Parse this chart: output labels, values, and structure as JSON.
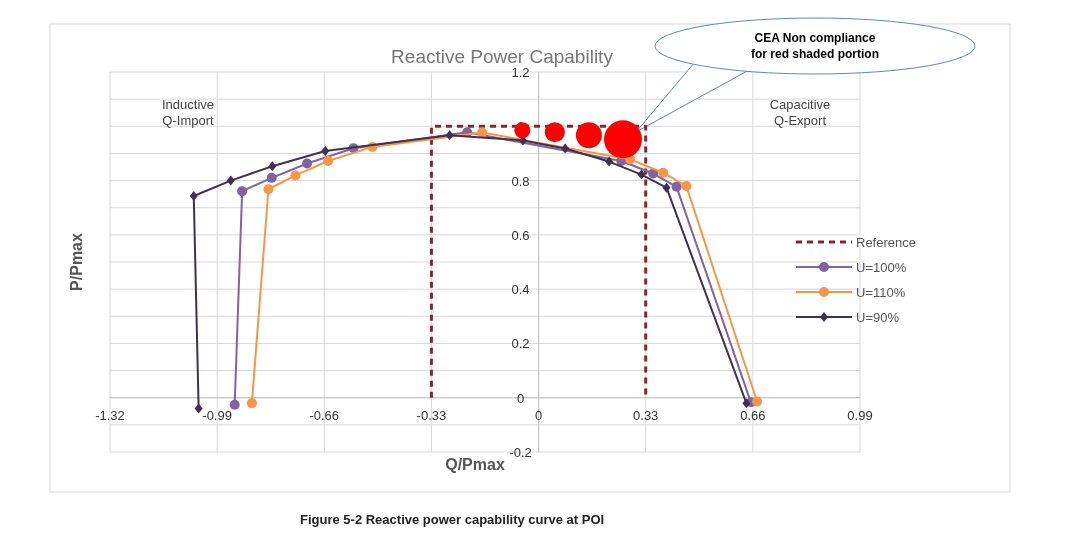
{
  "chart_data": {
    "type": "line",
    "title": "Reactive Power Capability",
    "xlabel": "Q/Pmax",
    "ylabel": "P/Pmax",
    "xlim": [
      -1.32,
      0.99
    ],
    "xticks": [
      -1.32,
      -0.99,
      -0.66,
      -0.33,
      0,
      0.33,
      0.66,
      0.99
    ],
    "ylim": [
      -0.2,
      1.2
    ],
    "yticks": [
      -0.2,
      {
        "value": -0.1,
        "label": null
      },
      0,
      {
        "value": 0.1,
        "label": null
      },
      0.2,
      {
        "value": 0.3,
        "label": null
      },
      0.4,
      {
        "value": 0.5,
        "label": null
      },
      0.6,
      {
        "value": 0.7,
        "label": null
      },
      0.8,
      {
        "value": 0.9,
        "label": null
      },
      1,
      {
        "value": 1.1,
        "label": null
      },
      1.2
    ],
    "grid": true,
    "legend": "right",
    "series": [
      {
        "name": "Reference",
        "color": "#7f2a2a",
        "line_style": "dashed",
        "marker": "none",
        "x": [
          -0.33,
          -0.33,
          0.33,
          0.33
        ],
        "values": [
          0,
          1,
          1,
          0
        ]
      },
      {
        "name": "U=100%",
        "color": "#8064a2",
        "marker": "circle",
        "x": [
          -0.936,
          -0.913,
          -0.822,
          -0.713,
          -0.57,
          -0.22,
          0.255,
          0.353,
          0.425,
          0.654
        ],
        "values": [
          -0.026,
          0.761,
          0.81,
          0.863,
          0.919,
          0.978,
          0.872,
          0.826,
          0.777,
          -0.017
        ]
      },
      {
        "name": "U=110%",
        "color": "#f79646",
        "marker": "circle",
        "x": [
          -0.883,
          -0.832,
          -0.749,
          -0.648,
          -0.512,
          -0.174,
          0.282,
          0.384,
          0.455,
          0.673
        ],
        "values": [
          -0.02,
          0.768,
          0.819,
          0.872,
          0.924,
          0.977,
          0.878,
          0.829,
          0.78,
          -0.014
        ]
      },
      {
        "name": "U=90%",
        "color": "#403152",
        "marker": "diamond",
        "x": [
          -1.047,
          -1.062,
          -0.948,
          -0.82,
          -0.657,
          -0.274,
          -0.048,
          0.082,
          0.217,
          0.317,
          0.394,
          0.64
        ],
        "values": [
          -0.04,
          0.743,
          0.8,
          0.853,
          0.909,
          0.967,
          0.948,
          0.918,
          0.87,
          0.822,
          0.774,
          -0.02
        ]
      },
      {
        "type": "bubble",
        "color": "#ff0000",
        "x": [
          -0.05,
          0.05,
          0.155,
          0.26
        ],
        "values": [
          0.985,
          0.978,
          0.967,
          0.952
        ],
        "sizes": [
          0.18,
          0.28,
          0.47,
          1
        ]
      }
    ],
    "annotations": [
      "Inductive\nQ-Import",
      "Capacitive\nQ-Export",
      "CEA Non compliance\nfor red shaded portion",
      "Figure 5-2 Reactive power capability curve at POI"
    ]
  }
}
